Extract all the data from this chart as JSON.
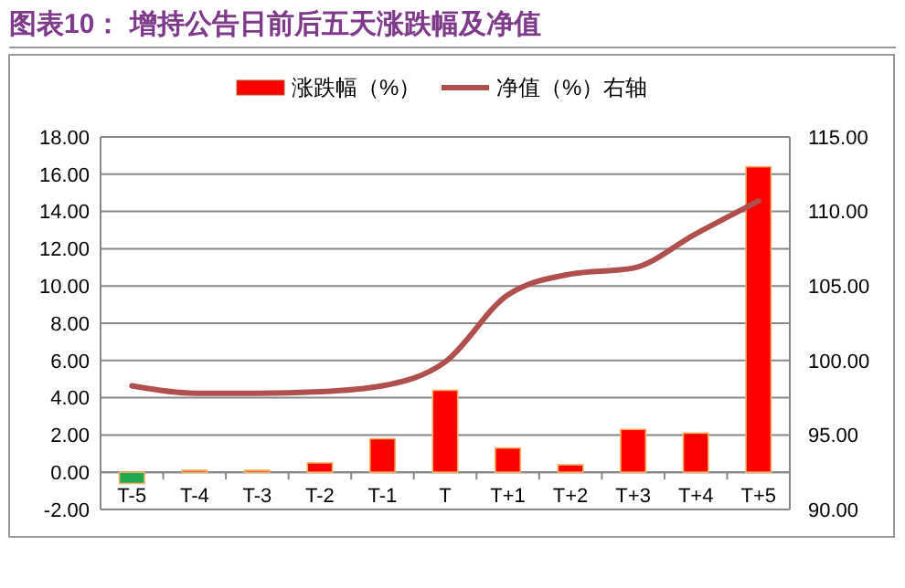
{
  "chart_data": {
    "type": "bar",
    "title": "图表10： 增持公告日前后五天涨跌幅及净值",
    "categories": [
      "T-5",
      "T-4",
      "T-3",
      "T-2",
      "T-1",
      "T",
      "T+1",
      "T+2",
      "T+3",
      "T+4",
      "T+5"
    ],
    "series": [
      {
        "name": "涨跌幅（%）",
        "color": "#ff0000",
        "colors": [
          "#1faa4f",
          "#ff0000",
          "#ff0000",
          "#ff0000",
          "#ff0000",
          "#ff0000",
          "#ff0000",
          "#ff0000",
          "#ff0000",
          "#ff0000",
          "#ff0000"
        ],
        "values": [
          -0.6,
          0.1,
          0.1,
          0.5,
          1.8,
          4.4,
          1.3,
          0.4,
          2.3,
          2.1,
          16.4
        ]
      },
      {
        "name": "净值（%）右轴",
        "type": "line",
        "axis": "y2",
        "color": "#b0504e",
        "values": [
          98.3,
          97.8,
          97.8,
          97.9,
          98.3,
          99.9,
          104.4,
          105.8,
          106.2,
          108.5,
          110.7
        ]
      }
    ],
    "ylim": [
      -2,
      18
    ],
    "yticks": [
      {
        "value": -2,
        "label": "-2.00"
      },
      {
        "value": 0,
        "label": "0.00"
      },
      {
        "value": 2,
        "label": "2.00"
      },
      {
        "value": 4,
        "label": "4.00"
      },
      {
        "value": 6,
        "label": "6.00"
      },
      {
        "value": 8,
        "label": "8.00"
      },
      {
        "value": 10,
        "label": "10.00"
      },
      {
        "value": 12,
        "label": "12.00"
      },
      {
        "value": 14,
        "label": "14.00"
      },
      {
        "value": 16,
        "label": "16.00"
      },
      {
        "value": 18,
        "label": "18.00"
      }
    ],
    "y2lim": [
      90,
      115
    ],
    "y2ticks": [
      {
        "value": 90,
        "label": "90.00"
      },
      {
        "value": 95,
        "label": "95.00"
      },
      {
        "value": 100,
        "label": "100.00"
      },
      {
        "value": 105,
        "label": "105.00"
      },
      {
        "value": 110,
        "label": "110.00"
      },
      {
        "value": 115,
        "label": "115.00"
      }
    ],
    "grid": "y",
    "legend": "top"
  }
}
